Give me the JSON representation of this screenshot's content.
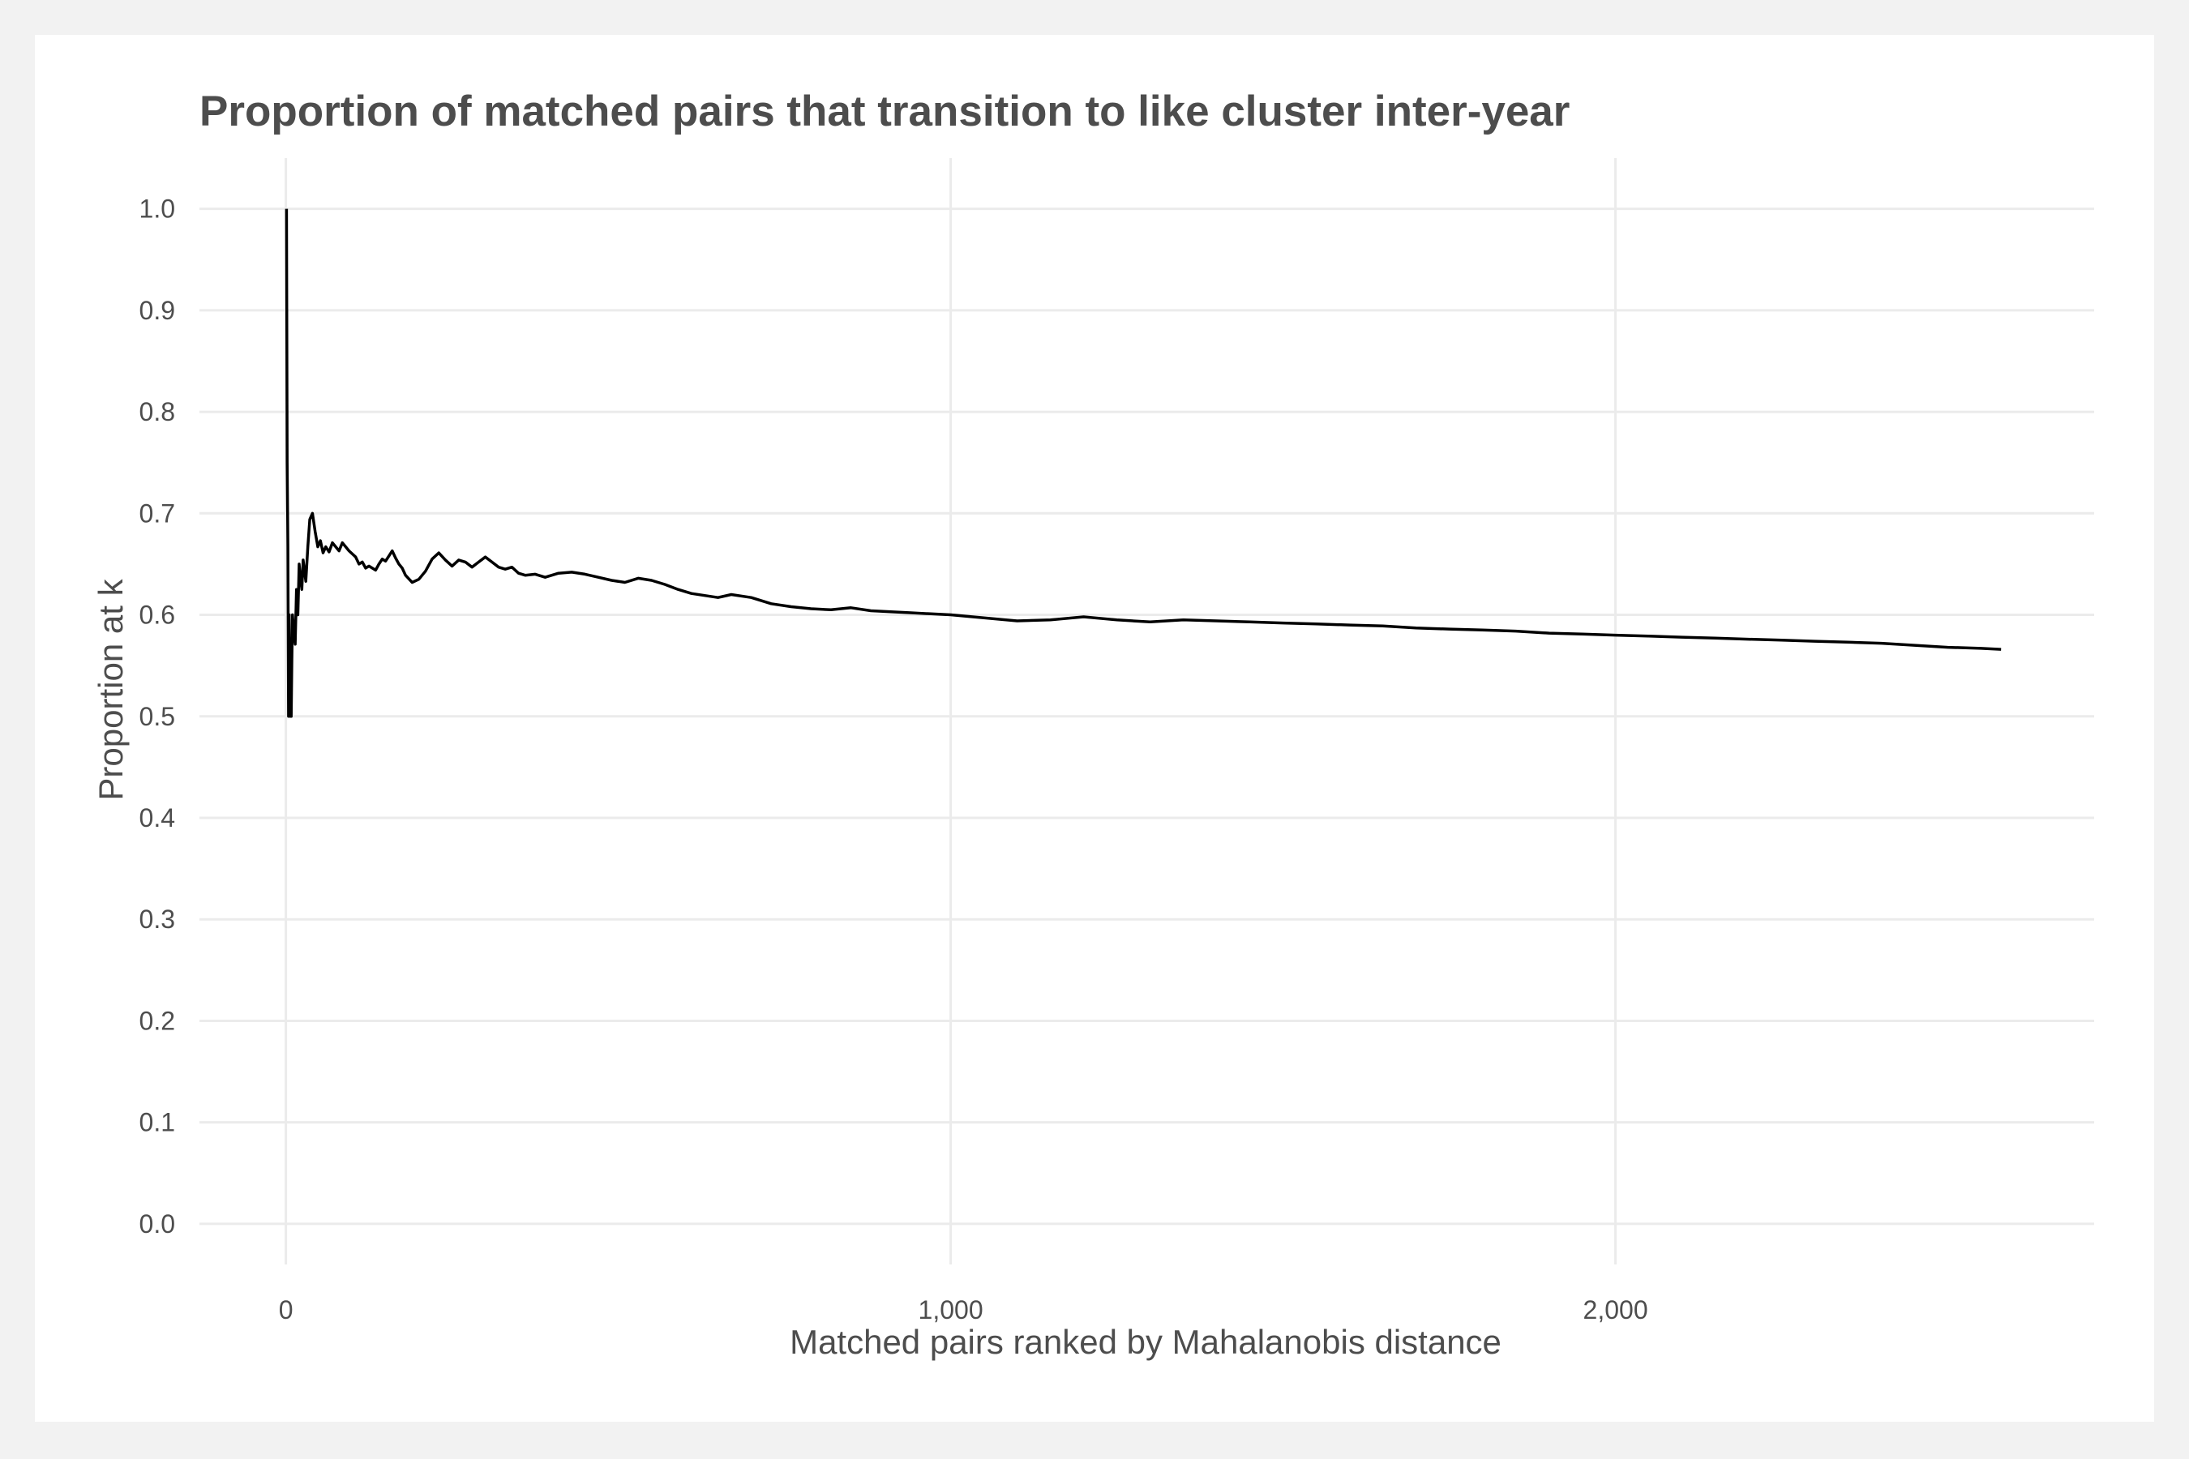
{
  "chart_data": {
    "type": "line",
    "title": "Proportion of matched pairs that transition to like cluster inter-year",
    "xlabel": "Matched pairs ranked by Mahalanobis distance",
    "ylabel": "Proportion at k",
    "xlim": [
      -130,
      2720
    ],
    "ylim": [
      -0.04,
      1.05
    ],
    "x_ticks": [
      0,
      1000,
      2000
    ],
    "x_tick_labels": [
      "0",
      "1,000",
      "2,000"
    ],
    "y_ticks": [
      0.0,
      0.1,
      0.2,
      0.3,
      0.4,
      0.5,
      0.6,
      0.7,
      0.8,
      0.9,
      1.0
    ],
    "y_tick_labels": [
      "0.0",
      "0.1",
      "0.2",
      "0.3",
      "0.4",
      "0.5",
      "0.6",
      "0.7",
      "0.8",
      "0.9",
      "1.0"
    ],
    "grid": true,
    "legend": "none",
    "line_color": "#000000",
    "series": [
      {
        "x": [
          1,
          2,
          3,
          4,
          5,
          6,
          7,
          8,
          9,
          10,
          12,
          14,
          16,
          18,
          20,
          22,
          24,
          26,
          28,
          30,
          33,
          36,
          40,
          44,
          48,
          52,
          56,
          60,
          65,
          70,
          75,
          80,
          85,
          90,
          95,
          100,
          105,
          110,
          115,
          120,
          125,
          130,
          135,
          140,
          145,
          150,
          155,
          160,
          165,
          170,
          175,
          180,
          190,
          200,
          210,
          220,
          230,
          240,
          250,
          260,
          270,
          280,
          290,
          300,
          310,
          320,
          330,
          340,
          350,
          360,
          375,
          390,
          410,
          430,
          450,
          470,
          490,
          510,
          530,
          550,
          570,
          590,
          610,
          630,
          650,
          670,
          700,
          730,
          760,
          790,
          820,
          850,
          880,
          910,
          940,
          970,
          1000,
          1050,
          1100,
          1150,
          1200,
          1250,
          1300,
          1350,
          1400,
          1450,
          1500,
          1550,
          1600,
          1650,
          1700,
          1750,
          1800,
          1850,
          1900,
          1950,
          2000,
          2050,
          2100,
          2150,
          2200,
          2250,
          2300,
          2350,
          2400,
          2450,
          2500,
          2550,
          2580
        ],
        "y": [
          1.0,
          0.75,
          0.667,
          0.5,
          0.6,
          0.5,
          0.571,
          0.5,
          0.556,
          0.6,
          0.583,
          0.571,
          0.625,
          0.6,
          0.65,
          0.636,
          0.625,
          0.654,
          0.643,
          0.633,
          0.667,
          0.694,
          0.7,
          0.682,
          0.667,
          0.673,
          0.661,
          0.667,
          0.662,
          0.671,
          0.667,
          0.663,
          0.671,
          0.667,
          0.663,
          0.66,
          0.657,
          0.65,
          0.652,
          0.646,
          0.648,
          0.646,
          0.644,
          0.65,
          0.655,
          0.653,
          0.658,
          0.663,
          0.656,
          0.65,
          0.646,
          0.639,
          0.632,
          0.635,
          0.643,
          0.655,
          0.661,
          0.654,
          0.648,
          0.654,
          0.652,
          0.647,
          0.652,
          0.657,
          0.652,
          0.647,
          0.645,
          0.647,
          0.641,
          0.639,
          0.64,
          0.637,
          0.641,
          0.642,
          0.64,
          0.637,
          0.634,
          0.632,
          0.636,
          0.634,
          0.63,
          0.625,
          0.621,
          0.619,
          0.617,
          0.62,
          0.617,
          0.611,
          0.608,
          0.606,
          0.605,
          0.607,
          0.604,
          0.603,
          0.602,
          0.601,
          0.6,
          0.597,
          0.594,
          0.595,
          0.598,
          0.595,
          0.593,
          0.595,
          0.594,
          0.593,
          0.592,
          0.591,
          0.59,
          0.589,
          0.587,
          0.586,
          0.585,
          0.584,
          0.582,
          0.581,
          0.58,
          0.579,
          0.578,
          0.577,
          0.576,
          0.575,
          0.574,
          0.573,
          0.572,
          0.57,
          0.568,
          0.567,
          0.566
        ]
      }
    ]
  }
}
